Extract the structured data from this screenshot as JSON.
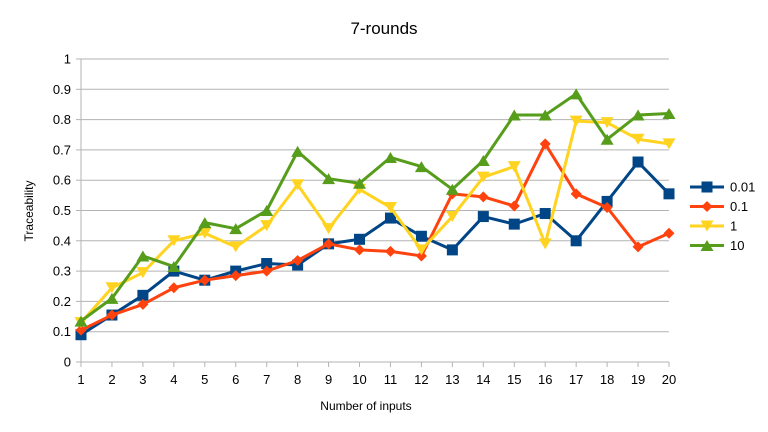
{
  "chart_data": {
    "type": "line",
    "title": "7-rounds",
    "xlabel": "Number of inputs",
    "ylabel": "Traceability",
    "x": [
      1,
      2,
      3,
      4,
      5,
      6,
      7,
      8,
      9,
      10,
      11,
      12,
      13,
      14,
      15,
      16,
      17,
      18,
      19,
      20
    ],
    "ylim": [
      0,
      1
    ],
    "yticks": [
      "0",
      "0.1",
      "0.2",
      "0.3",
      "0.4",
      "0.5",
      "0.6",
      "0.7",
      "0.8",
      "0.9",
      "1"
    ],
    "grid": true,
    "legend_position": "right",
    "series": [
      {
        "name": "0.01",
        "color": "#004586",
        "marker": "square",
        "values": [
          0.09,
          0.155,
          0.22,
          0.3,
          0.27,
          0.3,
          0.325,
          0.32,
          0.39,
          0.405,
          0.475,
          0.415,
          0.37,
          0.48,
          0.455,
          0.49,
          0.4,
          0.53,
          0.66,
          0.555
        ]
      },
      {
        "name": "0.1",
        "color": "#ff420e",
        "marker": "diamond",
        "values": [
          0.105,
          0.155,
          0.19,
          0.245,
          0.27,
          0.285,
          0.3,
          0.335,
          0.39,
          0.37,
          0.365,
          0.35,
          0.555,
          0.545,
          0.515,
          0.72,
          0.555,
          0.51,
          0.38,
          0.425
        ]
      },
      {
        "name": "1",
        "color": "#ffd320",
        "marker": "triangle-down",
        "values": [
          0.13,
          0.245,
          0.295,
          0.4,
          0.425,
          0.38,
          0.45,
          0.585,
          0.44,
          0.57,
          0.51,
          0.37,
          0.48,
          0.61,
          0.645,
          0.39,
          0.795,
          0.79,
          0.735,
          0.72
        ]
      },
      {
        "name": "10",
        "color": "#579d1c",
        "marker": "triangle-up",
        "values": [
          0.135,
          0.21,
          0.35,
          0.315,
          0.46,
          0.44,
          0.5,
          0.695,
          0.605,
          0.59,
          0.675,
          0.645,
          0.57,
          0.665,
          0.815,
          0.815,
          0.885,
          0.735,
          0.815,
          0.82
        ]
      }
    ]
  }
}
